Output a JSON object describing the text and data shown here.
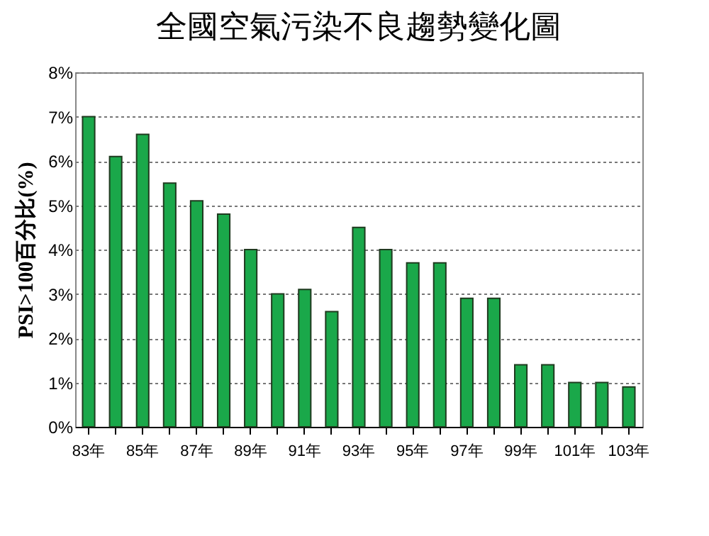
{
  "chart_data": {
    "type": "bar",
    "title": "全國空氣污染不良趨勢變化圖",
    "ylabel": "PSI>100百分比(%)",
    "categories": [
      "83年",
      null,
      "85年",
      null,
      "87年",
      null,
      "89年",
      null,
      "91年",
      null,
      "93年",
      null,
      "95年",
      null,
      "97年",
      null,
      "99年",
      null,
      "101年",
      null,
      "103年"
    ],
    "values": [
      7.0,
      6.1,
      6.6,
      5.5,
      5.1,
      4.8,
      4.0,
      3.0,
      3.1,
      2.6,
      4.5,
      4.0,
      3.7,
      3.7,
      2.9,
      2.9,
      1.4,
      1.4,
      1.0,
      1.0,
      0.9
    ],
    "color": "#1aa84a",
    "ylim": [
      0,
      8
    ],
    "yticks": [
      {
        "value": 0,
        "label": "0%"
      },
      {
        "value": 1,
        "label": "1%"
      },
      {
        "value": 2,
        "label": "2%"
      },
      {
        "value": 3,
        "label": "3%"
      },
      {
        "value": 4,
        "label": "4%"
      },
      {
        "value": 5,
        "label": "5%"
      },
      {
        "value": 6,
        "label": "6%"
      },
      {
        "value": 7,
        "label": "7%"
      },
      {
        "value": 8,
        "label": "8%"
      }
    ],
    "grid": "y"
  }
}
